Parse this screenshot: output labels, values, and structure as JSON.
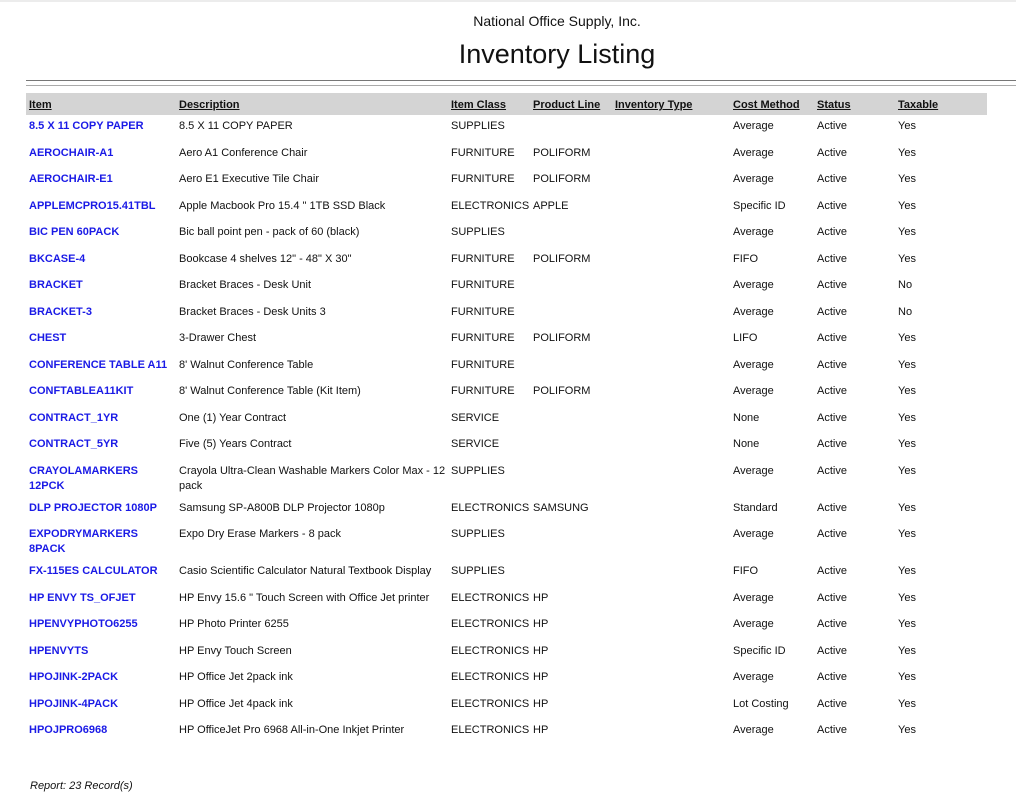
{
  "company": "National Office Supply, Inc.",
  "title": "Inventory Listing",
  "columns": [
    "Item",
    "Description",
    "Item Class",
    "Product Line",
    "Inventory Type",
    "Cost Method",
    "Status",
    "Taxable"
  ],
  "rows": [
    [
      "8.5 X 11 COPY PAPER",
      "8.5 X 11 COPY PAPER",
      "SUPPLIES",
      "",
      "",
      "Average",
      "Active",
      "Yes"
    ],
    [
      "AEROCHAIR-A1",
      "Aero A1 Conference Chair",
      "FURNITURE",
      "POLIFORM",
      "",
      "Average",
      "Active",
      "Yes"
    ],
    [
      "AEROCHAIR-E1",
      "Aero E1 Executive Tile Chair",
      "FURNITURE",
      "POLIFORM",
      "",
      "Average",
      "Active",
      "Yes"
    ],
    [
      "APPLEMCPRO15.41TBL",
      "Apple Macbook Pro 15.4 \" 1TB SSD Black",
      "ELECTRONICS",
      "APPLE",
      "",
      "Specific ID",
      "Active",
      "Yes"
    ],
    [
      "BIC PEN 60PACK",
      "Bic ball point pen - pack of 60 (black)",
      "SUPPLIES",
      "",
      "",
      "Average",
      "Active",
      "Yes"
    ],
    [
      "BKCASE-4",
      "Bookcase 4 shelves 12\" - 48\" X 30\"",
      "FURNITURE",
      "POLIFORM",
      "",
      "FIFO",
      "Active",
      "Yes"
    ],
    [
      "BRACKET",
      "Bracket Braces - Desk Unit",
      "FURNITURE",
      "",
      "",
      "Average",
      "Active",
      "No"
    ],
    [
      "BRACKET-3",
      "Bracket Braces - Desk Units 3",
      "FURNITURE",
      "",
      "",
      "Average",
      "Active",
      "No"
    ],
    [
      "CHEST",
      "3-Drawer Chest",
      "FURNITURE",
      "POLIFORM",
      "",
      "LIFO",
      "Active",
      "Yes"
    ],
    [
      "CONFERENCE TABLE A11",
      "8' Walnut Conference Table",
      "FURNITURE",
      "",
      "",
      "Average",
      "Active",
      "Yes"
    ],
    [
      "CONFTABLEA11KIT",
      "8' Walnut Conference Table (Kit Item)",
      "FURNITURE",
      "POLIFORM",
      "",
      "Average",
      "Active",
      "Yes"
    ],
    [
      "CONTRACT_1YR",
      "One (1) Year Contract",
      "SERVICE",
      "",
      "",
      "None",
      "Active",
      "Yes"
    ],
    [
      "CONTRACT_5YR",
      "Five (5) Years Contract",
      "SERVICE",
      "",
      "",
      "None",
      "Active",
      "Yes"
    ],
    [
      "CRAYOLAMARKERS 12PCK",
      "Crayola Ultra-Clean Washable Markers Color Max - 12 pack",
      "SUPPLIES",
      "",
      "",
      "Average",
      "Active",
      "Yes"
    ],
    [
      "DLP PROJECTOR 1080P",
      "Samsung SP-A800B DLP Projector 1080p",
      "ELECTRONICS",
      "SAMSUNG",
      "",
      "Standard",
      "Active",
      "Yes"
    ],
    [
      "EXPODRYMARKERS 8PACK",
      "Expo Dry Erase Markers - 8 pack",
      "SUPPLIES",
      "",
      "",
      "Average",
      "Active",
      "Yes"
    ],
    [
      "FX-115ES CALCULATOR",
      "Casio Scientific Calculator Natural Textbook Display",
      "SUPPLIES",
      "",
      "",
      "FIFO",
      "Active",
      "Yes"
    ],
    [
      "HP ENVY TS_OFJET",
      "HP Envy 15.6 \" Touch Screen with Office Jet printer",
      "ELECTRONICS",
      "HP",
      "",
      "Average",
      "Active",
      "Yes"
    ],
    [
      "HPENVYPHOTO6255",
      "HP Photo Printer 6255",
      "ELECTRONICS",
      "HP",
      "",
      "Average",
      "Active",
      "Yes"
    ],
    [
      "HPENVYTS",
      "HP Envy Touch Screen",
      "ELECTRONICS",
      "HP",
      "",
      "Specific ID",
      "Active",
      "Yes"
    ],
    [
      "HPOJINK-2PACK",
      "HP Office Jet 2pack ink",
      "ELECTRONICS",
      "HP",
      "",
      "Average",
      "Active",
      "Yes"
    ],
    [
      "HPOJINK-4PACK",
      "HP Office Jet 4pack ink",
      "ELECTRONICS",
      "HP",
      "",
      "Lot Costing",
      "Active",
      "Yes"
    ],
    [
      "HPOJPRO6968",
      "HP OfficeJet Pro 6968 All-in-One Inkjet Printer",
      "ELECTRONICS",
      "HP",
      "",
      "Average",
      "Active",
      "Yes"
    ]
  ],
  "footer": "Report: 23 Record(s)",
  "colors": {
    "item_link": "#1a1ae6",
    "header_bg": "#d4d4d4"
  }
}
